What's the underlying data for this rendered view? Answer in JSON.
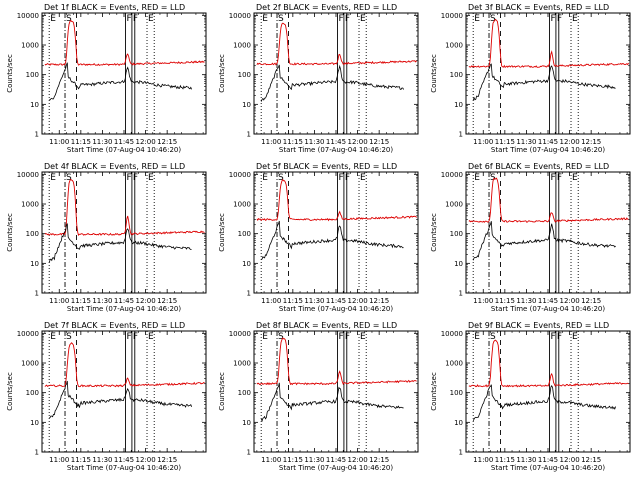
{
  "colors": {
    "events": "#000000",
    "lld": "#dd0000",
    "frame": "#000000",
    "background": "#ffffff"
  },
  "chart_data": {
    "type": "line",
    "grid": false,
    "ylog": true,
    "ylim": [
      1,
      12000
    ],
    "xlim_minutes": [
      -12,
      102
    ],
    "x_ticks": [
      {
        "minute": 0,
        "label": "11:00"
      },
      {
        "minute": 15,
        "label": "11:15"
      },
      {
        "minute": 30,
        "label": "11:30"
      },
      {
        "minute": 45,
        "label": "11:45"
      },
      {
        "minute": 60,
        "label": "12:00"
      },
      {
        "minute": 75,
        "label": "12:15"
      }
    ],
    "y_ticks": [
      {
        "value": 1,
        "label": "1"
      },
      {
        "value": 10,
        "label": "10"
      },
      {
        "value": 100,
        "label": "100"
      },
      {
        "value": 1000,
        "label": "1000"
      },
      {
        "value": 10000,
        "label": "10000"
      }
    ],
    "ylabel": "Counts/sec",
    "xlabel": "Start Time (07-Aug-04 10:46:20)",
    "markers": [
      {
        "minute": -7,
        "style": "dotted",
        "label": "E"
      },
      {
        "minute": 4,
        "style": "dash-dot",
        "label": "S"
      },
      {
        "minute": 12,
        "style": "dashed",
        "label": ""
      },
      {
        "minute": 46,
        "style": "solid",
        "label": "F"
      },
      {
        "minute": 50.5,
        "style": "solid",
        "label": "F"
      },
      {
        "minute": 52.5,
        "style": "solid",
        "label": ""
      },
      {
        "minute": 61,
        "style": "dotted",
        "label": "E"
      },
      {
        "minute": 66,
        "style": "dotted",
        "label": ""
      }
    ],
    "panels": [
      {
        "title": "Det 1f BLACK = Events, RED = LLD",
        "lld_base": 220,
        "lld_peak": 6500,
        "events_base": 48,
        "events_spike": 170,
        "lld_spike": 520
      },
      {
        "title": "Det 2f BLACK = Events, RED = LLD",
        "lld_base": 230,
        "lld_peak": 5200,
        "events_base": 48,
        "events_spike": 180,
        "lld_spike": 500
      },
      {
        "title": "Det 3f BLACK = Events, RED = LLD",
        "lld_base": 190,
        "lld_peak": 6800,
        "events_base": 52,
        "events_spike": 210,
        "lld_spike": 560
      },
      {
        "title": "Det 4f BLACK = Events, RED = LLD",
        "lld_base": 95,
        "lld_peak": 6500,
        "events_base": 42,
        "events_spike": 160,
        "lld_spike": 420
      },
      {
        "title": "Det 5f BLACK = Events, RED = LLD",
        "lld_base": 300,
        "lld_peak": 6200,
        "events_base": 50,
        "events_spike": 180,
        "lld_spike": 520
      },
      {
        "title": "Det 6f BLACK = Events, RED = LLD",
        "lld_base": 260,
        "lld_peak": 7200,
        "events_base": 50,
        "events_spike": 200,
        "lld_spike": 520
      },
      {
        "title": "Det 7f BLACK = Events, RED = LLD",
        "lld_base": 170,
        "lld_peak": 4500,
        "events_base": 48,
        "events_spike": 140,
        "lld_spike": 300
      },
      {
        "title": "Det 8f BLACK = Events, RED = LLD",
        "lld_base": 200,
        "lld_peak": 6800,
        "events_base": 42,
        "events_spike": 150,
        "lld_spike": 520
      },
      {
        "title": "Det 9f BLACK = Events, RED = LLD",
        "lld_base": 170,
        "lld_peak": 5800,
        "events_base": 42,
        "events_spike": 170,
        "lld_spike": 430
      }
    ]
  }
}
